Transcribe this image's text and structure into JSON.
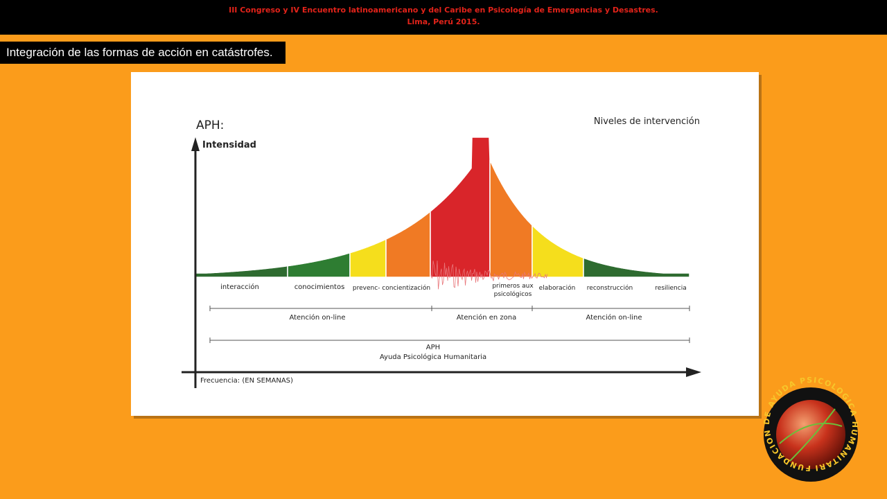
{
  "header": {
    "line1": "III Congreso y IV Encuentro latinoamericano y del Caribe en Psicología de Emergencias y Desastres.",
    "line2": "Lima, Perú 2015."
  },
  "slide_title": "Integración de las formas de acción en catástrofes.",
  "diagram": {
    "title": "APH:",
    "y_axis_label": "Intensidad",
    "legend_title": "Niveles de intervención",
    "phases": [
      "interacción",
      "conocimientos",
      "prevenc- concientización",
      "primeros aux psicológicos",
      "elaboración",
      "reconstrucción",
      "resiliencia"
    ],
    "ranges": [
      "Atención on-line",
      "Atención en zona",
      "Atención on-line"
    ],
    "overall": {
      "line1": "APH",
      "line2": "Ayuda Psicológica Humanitaria"
    },
    "x_axis_label": "Frecuencia: (EN SEMANAS)"
  },
  "logo": {
    "text": "FUNDACION DE AYUDA PSICOLOGICA HUMANITARIA"
  }
}
